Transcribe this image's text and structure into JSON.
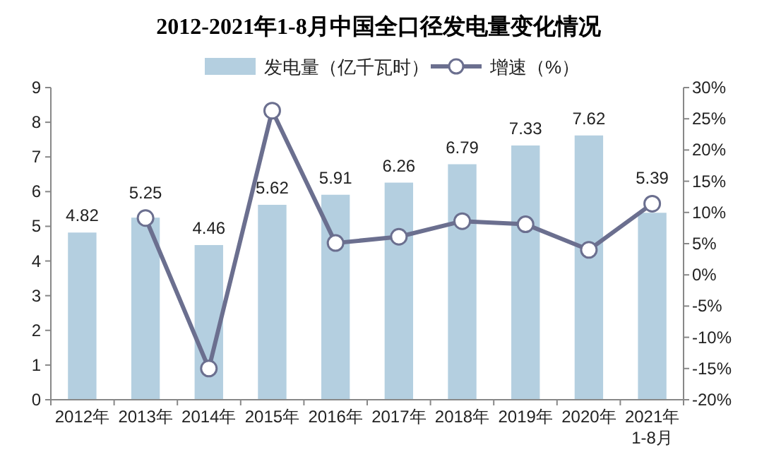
{
  "chart_data": {
    "type": "bar",
    "title": "2012-2021年1-8月中国全口径发电量变化情况",
    "categories": [
      "2012年",
      "2013年",
      "2014年",
      "2015年",
      "2016年",
      "2017年",
      "2018年",
      "2019年",
      "2020年",
      "2021年\n1-8月"
    ],
    "series": [
      {
        "name": "发电量（亿千瓦时）",
        "color": "#b4cfe0",
        "values": [
          4.82,
          5.25,
          4.46,
          5.62,
          5.91,
          6.26,
          6.79,
          7.33,
          7.62,
          5.39
        ],
        "value_labels": [
          "4.82",
          "5.25",
          "4.46",
          "5.62",
          "5.91",
          "6.26",
          "6.79",
          "7.33",
          "7.62",
          "5.39"
        ]
      },
      {
        "name": "增速（%）",
        "type": "line",
        "axis": "y2",
        "color": "#6b6f8f",
        "marker": "circle",
        "values": [
          null,
          9.1,
          -15.0,
          26.3,
          5.1,
          6.1,
          8.6,
          8.1,
          4.0,
          11.4
        ]
      }
    ],
    "ylim": [
      0,
      9
    ],
    "yticks": [
      0,
      1,
      2,
      3,
      4,
      5,
      6,
      7,
      8,
      9
    ],
    "y2lim": [
      -20,
      30
    ],
    "y2ticks": [
      {
        "value": -20,
        "label": "-20%"
      },
      {
        "value": -15,
        "label": "-15%"
      },
      {
        "value": -10,
        "label": "-10%"
      },
      {
        "value": -5,
        "label": "-5%"
      },
      {
        "value": 0,
        "label": "0%"
      },
      {
        "value": 5,
        "label": "5%"
      },
      {
        "value": 10,
        "label": "10%"
      },
      {
        "value": 15,
        "label": "15%"
      },
      {
        "value": 20,
        "label": "20%"
      },
      {
        "value": 25,
        "label": "25%"
      },
      {
        "value": 30,
        "label": "30%"
      }
    ],
    "legend": "top",
    "grid": false
  }
}
